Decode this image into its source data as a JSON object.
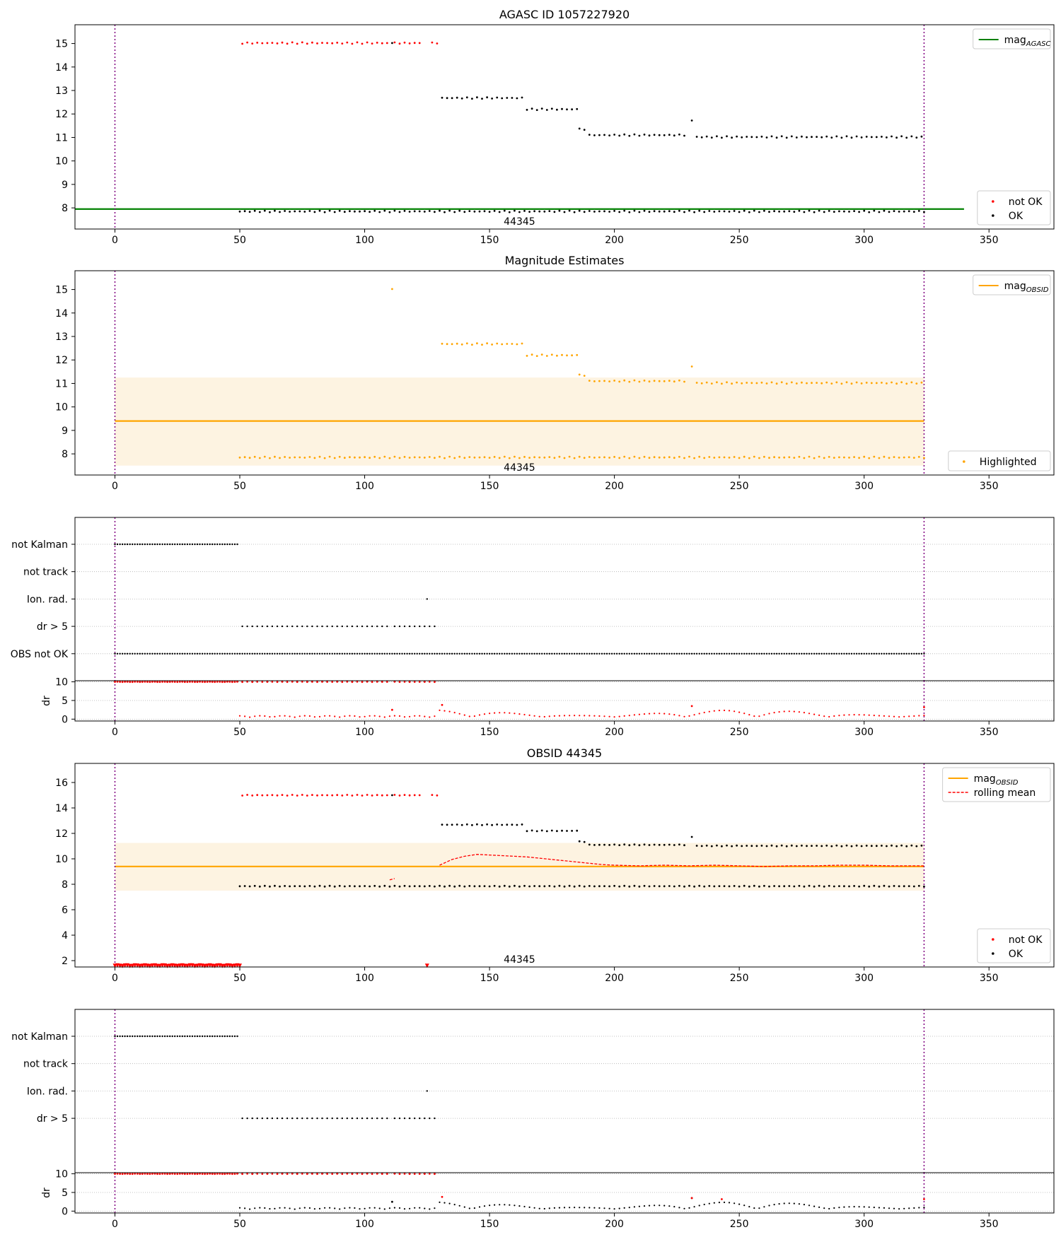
{
  "chart_data": [
    {
      "type": "scatter",
      "title": "AGASC ID 1057227920",
      "xlabel": "",
      "ylabel": "",
      "xlim": [
        -16,
        376
      ],
      "ylim": [
        7.1,
        15.8
      ],
      "x_ticks": [
        0,
        50,
        100,
        150,
        200,
        250,
        300,
        350
      ],
      "y_ticks": [
        8,
        9,
        10,
        11,
        12,
        13,
        14,
        15
      ],
      "vlines": [
        0,
        324
      ],
      "hline": {
        "y": 7.95,
        "x_range": [
          -16,
          340
        ],
        "color": "#008000"
      },
      "annotation": "44345",
      "legends": [
        {
          "position": "top-right",
          "entries": [
            {
              "label": "mag",
              "sub": "AGASC",
              "kind": "line",
              "color": "#008000"
            }
          ]
        },
        {
          "position": "bottom-right",
          "entries": [
            {
              "label": "not OK",
              "kind": "dot",
              "color": "#ff0000"
            },
            {
              "label": "OK",
              "kind": "dot",
              "color": "#000000"
            }
          ]
        }
      ],
      "series": [
        {
          "name": "not OK",
          "color": "#ff0000",
          "segments": [
            {
              "from": 51,
              "to": 110,
              "y": 15.02,
              "step": 2
            },
            {
              "from": 112,
              "to": 123,
              "y": 15.02,
              "step": 2
            },
            {
              "from": 127,
              "to": 129,
              "y": 15.02,
              "step": 2
            }
          ]
        },
        {
          "name": "OK",
          "color": "#000000",
          "segments": [
            {
              "from": 50,
              "to": 324,
              "y": 7.85,
              "step": 2
            },
            {
              "from": 131,
              "to": 163,
              "y": 12.68,
              "step": 2
            },
            {
              "from": 165,
              "to": 185,
              "y": 12.2,
              "step": 2
            },
            {
              "from": 186,
              "to": 189,
              "y": 11.35,
              "step": 2
            },
            {
              "from": 190,
              "to": 229,
              "y": 11.1,
              "step": 2
            },
            {
              "from": 233,
              "to": 324,
              "y": 11.02,
              "step": 2
            }
          ],
          "points": [
            [
              111,
              15.02
            ],
            [
              231,
              11.72
            ]
          ]
        }
      ]
    },
    {
      "type": "scatter",
      "title": "Magnitude Estimates",
      "xlabel": "",
      "ylabel": "",
      "xlim": [
        -16,
        376
      ],
      "ylim": [
        7.1,
        15.8
      ],
      "x_ticks": [
        0,
        50,
        100,
        150,
        200,
        250,
        300,
        350
      ],
      "y_ticks": [
        8,
        9,
        10,
        11,
        12,
        13,
        14,
        15
      ],
      "vlines": [
        0,
        324
      ],
      "hline": {
        "y": 9.4,
        "x_range": [
          0,
          324
        ],
        "color": "#ffa500"
      },
      "band": {
        "y0": 7.5,
        "y1": 11.25,
        "x_range": [
          0,
          324
        ]
      },
      "annotation": "44345",
      "legends": [
        {
          "position": "top-right",
          "entries": [
            {
              "label": "mag",
              "sub": "OBSID",
              "kind": "line",
              "color": "#ffa500"
            }
          ]
        },
        {
          "position": "bottom-right",
          "entries": [
            {
              "label": "Highlighted",
              "kind": "dot",
              "color": "#ffa500"
            }
          ]
        }
      ],
      "series": [
        {
          "name": "Highlighted",
          "color": "#ffa500",
          "segments": [
            {
              "from": 50,
              "to": 324,
              "y": 7.85,
              "step": 2
            },
            {
              "from": 131,
              "to": 163,
              "y": 12.68,
              "step": 2
            },
            {
              "from": 165,
              "to": 185,
              "y": 12.2,
              "step": 2
            },
            {
              "from": 186,
              "to": 189,
              "y": 11.35,
              "step": 2
            },
            {
              "from": 190,
              "to": 229,
              "y": 11.1,
              "step": 2
            },
            {
              "from": 233,
              "to": 324,
              "y": 11.02,
              "step": 2
            }
          ],
          "points": [
            [
              111,
              15.02
            ],
            [
              231,
              11.72
            ]
          ]
        }
      ]
    },
    {
      "type": "scatter",
      "title": "",
      "xlabel": "",
      "ylabel": "",
      "xlim": [
        -16,
        376
      ],
      "categories": [
        "not Kalman",
        "not track",
        "Ion. rad.",
        "dr > 5",
        "OBS not OK"
      ],
      "vlines": [
        0,
        324
      ],
      "rows": [
        {
          "row": "not Kalman",
          "color": "#000000",
          "segments": [
            {
              "from": 0,
              "to": 49,
              "step": 1
            }
          ]
        },
        {
          "row": "not track",
          "color": "#000000",
          "segments": []
        },
        {
          "row": "Ion. rad.",
          "color": "#000000",
          "segments": [],
          "points": [
            125
          ]
        },
        {
          "row": "dr > 5",
          "color": "#000000",
          "segments": [
            {
              "from": 51,
              "to": 110,
              "step": 2
            },
            {
              "from": 112,
              "to": 129,
              "step": 2
            }
          ]
        },
        {
          "row": "OBS not OK",
          "color": "#000000",
          "segments": [
            {
              "from": 0,
              "to": 324,
              "step": 1
            }
          ]
        }
      ]
    },
    {
      "type": "scatter",
      "title": "",
      "xlabel": "",
      "ylabel": "dr",
      "xlim": [
        -16,
        376
      ],
      "ylim": [
        -0.5,
        10.3
      ],
      "x_ticks": [
        0,
        50,
        100,
        150,
        200,
        250,
        300,
        350
      ],
      "y_ticks": [
        0,
        5,
        10
      ],
      "vlines": [
        0,
        324
      ],
      "series": [
        {
          "name": "dr > 5",
          "color": "#ff0000",
          "segments": [
            {
              "from": 0,
              "to": 49,
              "y": 10,
              "step": 1
            },
            {
              "from": 51,
              "to": 110,
              "y": 10,
              "step": 2
            },
            {
              "from": 112,
              "to": 129,
              "y": 10,
              "step": 2
            }
          ]
        },
        {
          "name": "dr",
          "color": "#ff0000",
          "wave": {
            "from": 50,
            "to": 324,
            "step": 2
          },
          "points": [
            [
              111,
              2.5
            ],
            [
              131,
              3.8
            ],
            [
              231,
              3.5
            ],
            [
              324,
              3.2
            ]
          ]
        }
      ]
    },
    {
      "type": "line",
      "title": "OBSID 44345",
      "xlabel": "",
      "ylabel": "",
      "xlim": [
        -16,
        376
      ],
      "ylim": [
        1.5,
        17.5
      ],
      "x_ticks": [
        0,
        50,
        100,
        150,
        200,
        250,
        300,
        350
      ],
      "y_ticks": [
        2,
        4,
        6,
        8,
        10,
        12,
        14,
        16
      ],
      "vlines": [
        0,
        324
      ],
      "hline": {
        "y": 9.4,
        "x_range": [
          0,
          324
        ],
        "color": "#ffa500"
      },
      "band": {
        "y0": 7.5,
        "y1": 11.25,
        "x_range": [
          0,
          324
        ]
      },
      "annotation": "44345",
      "legends": [
        {
          "position": "top-right",
          "entries": [
            {
              "label": "mag",
              "sub": "OBSID",
              "kind": "line",
              "color": "#ffa500"
            },
            {
              "label": "rolling mean",
              "kind": "dash",
              "color": "#ff0000"
            }
          ]
        },
        {
          "position": "bottom-right",
          "entries": [
            {
              "label": "not OK",
              "kind": "dot",
              "color": "#ff0000"
            },
            {
              "label": "OK",
              "kind": "dot",
              "color": "#000000"
            }
          ]
        }
      ],
      "series": [
        {
          "name": "not OK",
          "color": "#ff0000",
          "segments": [
            {
              "from": 51,
              "to": 110,
              "y": 15.0,
              "step": 2
            },
            {
              "from": 112,
              "to": 123,
              "y": 15.0,
              "step": 2
            },
            {
              "from": 127,
              "to": 129,
              "y": 15.0,
              "step": 2
            }
          ]
        },
        {
          "name": "not OK",
          "color": "#ff0000",
          "marker": "triangle",
          "segments": [
            {
              "from": 0,
              "to": 50,
              "y": 1.6,
              "step": 1
            }
          ],
          "points": [
            [
              125,
              1.6
            ]
          ]
        },
        {
          "name": "OK",
          "color": "#000000",
          "segments": [
            {
              "from": 50,
              "to": 324,
              "y": 7.85,
              "step": 2
            },
            {
              "from": 131,
              "to": 163,
              "y": 12.68,
              "step": 2
            },
            {
              "from": 165,
              "to": 185,
              "y": 12.2,
              "step": 2
            },
            {
              "from": 186,
              "to": 189,
              "y": 11.35,
              "step": 2
            },
            {
              "from": 190,
              "to": 229,
              "y": 11.1,
              "step": 2
            },
            {
              "from": 233,
              "to": 324,
              "y": 11.02,
              "step": 2
            }
          ],
          "points": [
            [
              111,
              15.0
            ],
            [
              231,
              11.72
            ]
          ]
        },
        {
          "name": "rolling mean",
          "color": "#ff0000",
          "kind": "dashed",
          "x": [
            130,
            135,
            140,
            145,
            150,
            155,
            160,
            165,
            170,
            175,
            180,
            185,
            190,
            195,
            200,
            210,
            220,
            230,
            240,
            250,
            260,
            270,
            280,
            290,
            300,
            310,
            324
          ],
          "y": [
            9.5,
            9.95,
            10.2,
            10.35,
            10.3,
            10.25,
            10.2,
            10.15,
            10.05,
            9.95,
            9.85,
            9.75,
            9.65,
            9.55,
            9.5,
            9.45,
            9.5,
            9.45,
            9.5,
            9.45,
            9.4,
            9.45,
            9.45,
            9.5,
            9.5,
            9.45,
            9.45
          ]
        },
        {
          "name": "rolling mean",
          "color": "#ff0000",
          "kind": "dashed",
          "x": [
            110,
            112
          ],
          "y": [
            8.35,
            8.45
          ]
        }
      ]
    },
    {
      "type": "scatter",
      "title": "",
      "xlabel": "",
      "ylabel": "",
      "xlim": [
        -16,
        376
      ],
      "categories": [
        "not Kalman",
        "not track",
        "Ion. rad.",
        "dr > 5"
      ],
      "vlines": [
        0,
        324
      ],
      "rows": [
        {
          "row": "not Kalman",
          "color": "#000000",
          "segments": [
            {
              "from": 0,
              "to": 49,
              "step": 1
            }
          ]
        },
        {
          "row": "not track",
          "color": "#000000",
          "segments": []
        },
        {
          "row": "Ion. rad.",
          "color": "#000000",
          "segments": [],
          "points": [
            125
          ]
        },
        {
          "row": "dr > 5",
          "color": "#000000",
          "segments": [
            {
              "from": 51,
              "to": 110,
              "step": 2
            },
            {
              "from": 112,
              "to": 129,
              "step": 2
            }
          ]
        }
      ]
    },
    {
      "type": "scatter",
      "title": "",
      "xlabel": "",
      "ylabel": "dr",
      "xlim": [
        -16,
        376
      ],
      "ylim": [
        -0.5,
        10.3
      ],
      "x_ticks": [
        0,
        50,
        100,
        150,
        200,
        250,
        300,
        350
      ],
      "y_ticks": [
        0,
        5,
        10
      ],
      "vlines": [
        0,
        324
      ],
      "series": [
        {
          "name": "dr > 5",
          "color": "#ff0000",
          "segments": [
            {
              "from": 0,
              "to": 49,
              "y": 10,
              "step": 1
            },
            {
              "from": 51,
              "to": 110,
              "y": 10,
              "step": 2
            },
            {
              "from": 112,
              "to": 129,
              "y": 10,
              "step": 2
            }
          ]
        },
        {
          "name": "dr",
          "color": "#000000",
          "wave": {
            "from": 50,
            "to": 324,
            "step": 2
          },
          "points": [
            [
              111,
              2.5
            ],
            [
              231,
              3.5
            ]
          ]
        },
        {
          "name": "dr high",
          "color": "#ff0000",
          "points": [
            [
              131,
              3.8
            ],
            [
              231,
              3.5
            ],
            [
              243,
              3.2
            ],
            [
              324,
              3.2
            ]
          ]
        }
      ]
    }
  ]
}
